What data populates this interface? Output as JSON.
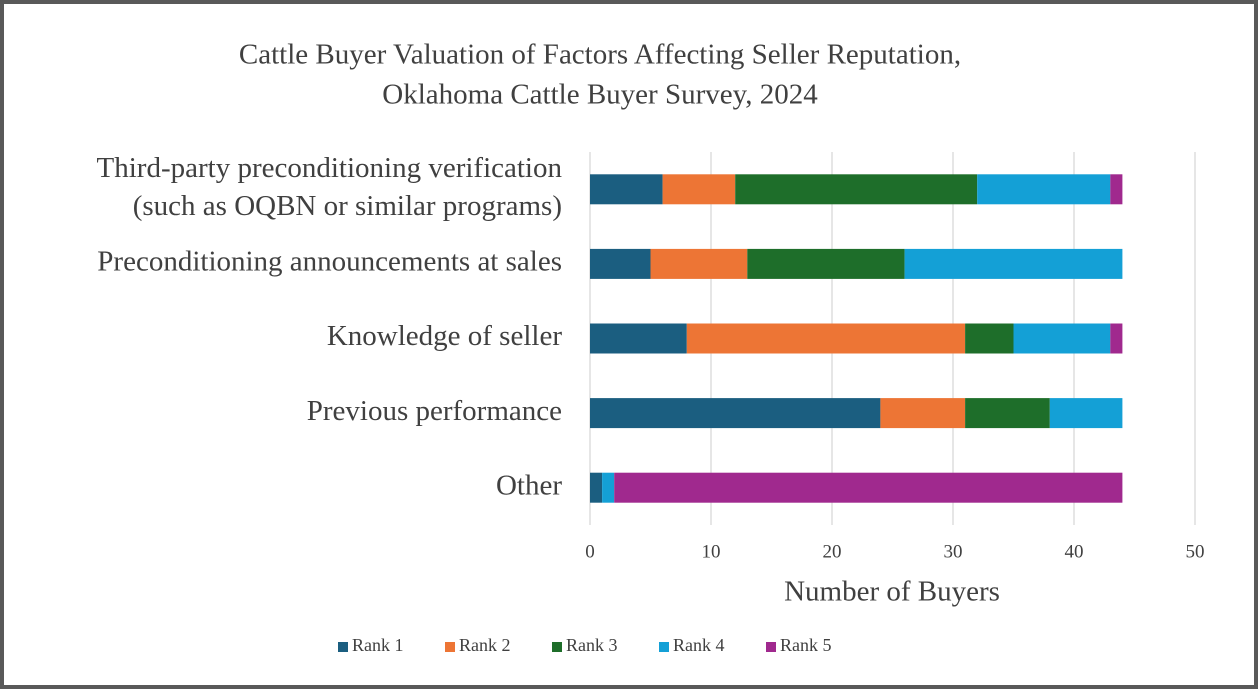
{
  "chart_data": {
    "type": "stacked-barh",
    "title": [
      "Cattle Buyer Valuation of Factors Affecting Seller Reputation,",
      "Oklahoma Cattle Buyer Survey, 2024"
    ],
    "categories": [
      [
        "Third-party preconditioning verification",
        "(such as OQBN or similar programs)"
      ],
      "Preconditioning announcements at sales",
      "Knowledge of seller",
      "Previous performance",
      "Other"
    ],
    "series": [
      {
        "name": "Rank 1",
        "color": "#1b5e80",
        "values": [
          6,
          5,
          8,
          24,
          1
        ]
      },
      {
        "name": "Rank 2",
        "color": "#ed7535",
        "values": [
          6,
          8,
          23,
          7,
          0
        ]
      },
      {
        "name": "Rank 3",
        "color": "#1e6e2a",
        "values": [
          20,
          13,
          4,
          7,
          0
        ]
      },
      {
        "name": "Rank 4",
        "color": "#14a0d6",
        "values": [
          11,
          18,
          8,
          6,
          1
        ]
      },
      {
        "name": "Rank 5",
        "color": "#a0298e",
        "values": [
          1,
          0,
          1,
          0,
          42
        ]
      }
    ],
    "xlabel": "Number of Buyers",
    "xlim": [
      0,
      50
    ],
    "xticks": [
      0,
      10,
      20,
      30,
      40,
      50
    ],
    "grid": true,
    "legend": "bottom"
  }
}
